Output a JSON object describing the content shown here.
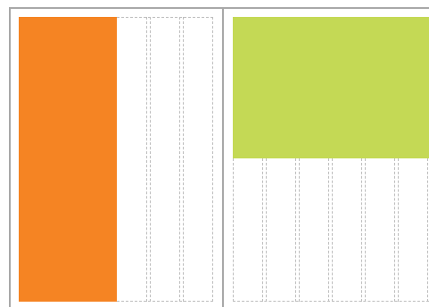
{
  "panels": [
    {
      "name": "left-page",
      "fill_color": "#f58423",
      "fill_orientation": "vertical",
      "guide_columns": 3
    },
    {
      "name": "right-page",
      "fill_color": "#c4d955",
      "fill_orientation": "horizontal",
      "guide_columns": 6
    }
  ],
  "colors": {
    "frame": "#a8a8a8",
    "guide": "#bdbdbd",
    "background": "#ffffff"
  }
}
